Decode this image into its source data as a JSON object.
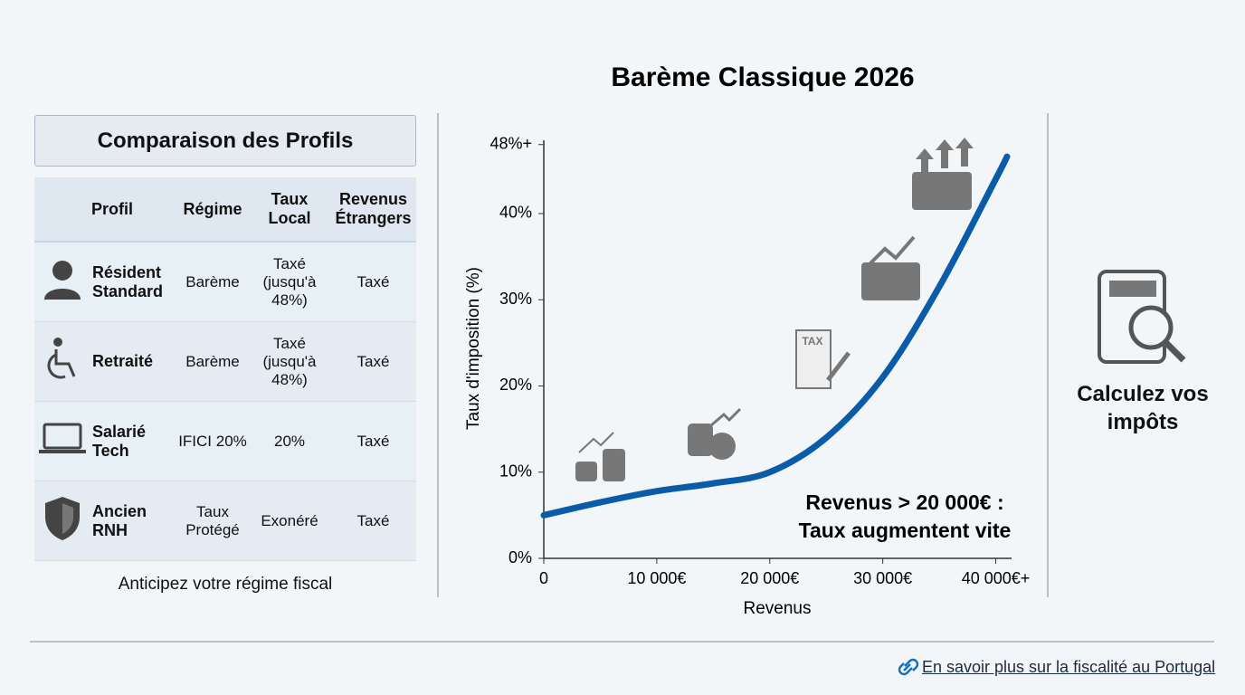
{
  "panel": {
    "title": "Comparaison des Profils",
    "caption": "Anticipez votre régime fiscal"
  },
  "table": {
    "header": [
      "Profil",
      "Régime",
      "Taux Local",
      "Revenus Étrangers"
    ],
    "rows": [
      [
        "Résident Standard",
        "Barème",
        "Taxé (jusqu'à 48%)",
        "Taxé"
      ],
      [
        "Retraité",
        "Barème",
        "Taxé (jusqu'à 48%)",
        "Taxé"
      ],
      [
        "Salarié Tech",
        "IFICI 20%",
        "20%",
        "Taxé"
      ],
      [
        "Ancien RNH",
        "Taux Protégé",
        "Exonéré",
        "Taxé"
      ]
    ]
  },
  "chart_data": {
    "type": "line",
    "title": "Barème Classique 2026",
    "x_label": "Revenus",
    "y_label": "Taux d'imposition (%)",
    "x": [
      0,
      5000,
      10000,
      15000,
      20000,
      25000,
      30000,
      35000,
      40000,
      41000
    ],
    "series": [
      {
        "name": "Barème",
        "color": "#0b5ca8",
        "values": [
          5,
          6.5,
          7.8,
          8.7,
          10,
          14,
          21,
          31.5,
          44,
          46.6
        ]
      }
    ],
    "xlim": [
      0,
      41400
    ],
    "ylim": [
      0,
      48.5
    ],
    "xticks": [
      0,
      {
        "value": 10000,
        "label": "10 000€"
      },
      {
        "value": 20000,
        "label": "20 000€"
      },
      {
        "value": 30000,
        "label": "30 000€"
      },
      {
        "value": 40000,
        "label": "40 000€+"
      }
    ],
    "yticks": [
      {
        "value": 0,
        "label": "0%"
      },
      {
        "value": 10,
        "label": "10%"
      },
      {
        "value": 20,
        "label": "20%"
      },
      {
        "value": 30,
        "label": "30%"
      },
      {
        "value": 40,
        "label": "40%"
      },
      {
        "value": 48,
        "label": "48%+"
      }
    ],
    "annotation": [
      "Revenus > 20 000€ :",
      "Taux augmentent vite"
    ]
  },
  "side": {
    "label": "Calculez vos impôts"
  },
  "footer": {
    "link": "En savoir plus sur la fiscalité au Portugal"
  }
}
